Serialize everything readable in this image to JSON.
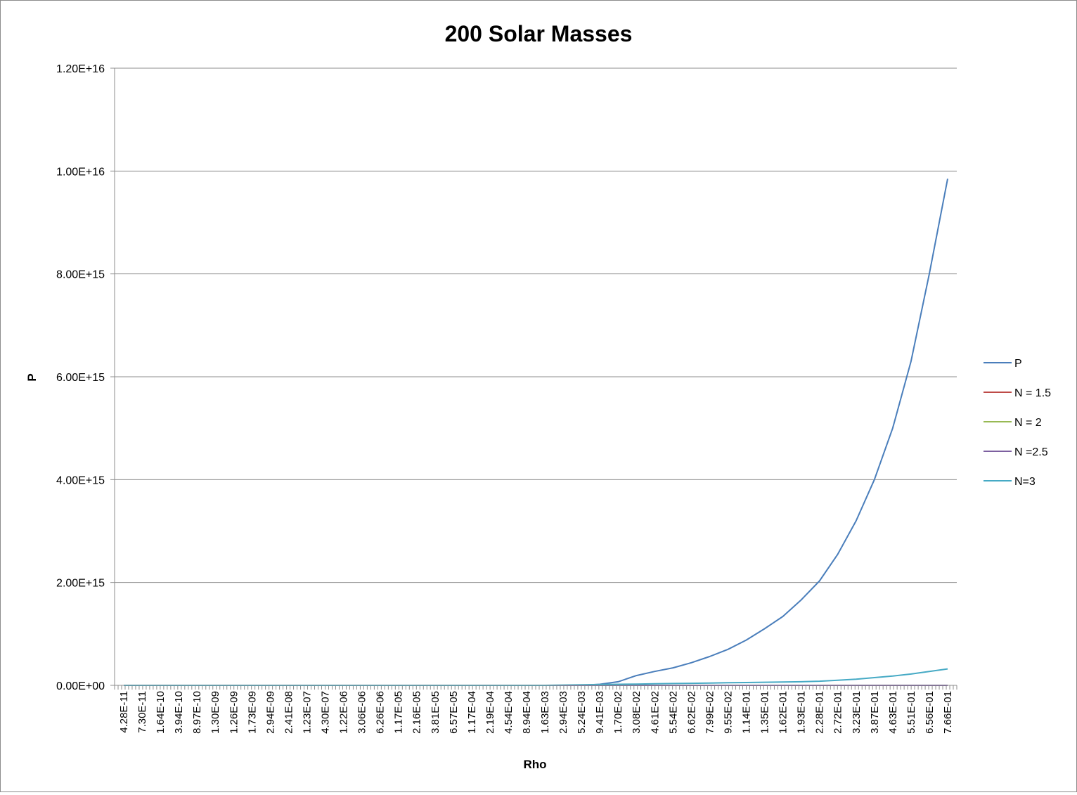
{
  "chart_data": {
    "type": "line",
    "title": "200 Solar Masses",
    "xlabel": "Rho",
    "ylabel": "P",
    "ylim": [
      0,
      1.2e+16
    ],
    "y_ticks": [
      "0.00E+00",
      "2.00E+15",
      "4.00E+15",
      "6.00E+15",
      "8.00E+15",
      "1.00E+16",
      "1.20E+16"
    ],
    "y_tick_values": [
      0,
      2000000000000000.0,
      4000000000000000.0,
      6000000000000000.0,
      8000000000000000.0,
      1e+16,
      1.2e+16
    ],
    "grid": true,
    "legend_position": "right",
    "categories": [
      "4.28E-11",
      "7.30E-11",
      "1.64E-10",
      "3.94E-10",
      "8.97E-10",
      "1.30E-09",
      "1.26E-09",
      "1.73E-09",
      "2.94E-09",
      "2.41E-08",
      "1.23E-07",
      "4.30E-07",
      "1.22E-06",
      "3.06E-06",
      "6.26E-06",
      "1.17E-05",
      "2.16E-05",
      "3.81E-05",
      "6.57E-05",
      "1.17E-04",
      "2.19E-04",
      "4.54E-04",
      "8.94E-04",
      "1.63E-03",
      "2.94E-03",
      "5.24E-03",
      "9.41E-03",
      "1.70E-02",
      "3.08E-02",
      "4.61E-02",
      "5.54E-02",
      "6.62E-02",
      "7.99E-02",
      "9.55E-02",
      "1.14E-01",
      "1.35E-01",
      "1.62E-01",
      "1.93E-01",
      "2.28E-01",
      "2.72E-01",
      "3.23E-01",
      "3.87E-01",
      "4.63E-01",
      "5.51E-01",
      "6.56E-01",
      "7.66E-01"
    ],
    "series": [
      {
        "name": "P",
        "color": "#4a7ebb",
        "values": [
          0,
          0,
          0,
          0,
          0,
          0,
          0,
          0,
          0,
          0,
          0,
          0,
          0,
          0,
          0,
          0,
          0,
          0,
          0,
          0,
          0,
          0,
          0,
          0,
          0,
          0,
          20000000000000.0,
          70000000000000.0,
          190000000000000.0,
          270000000000000.0,
          340000000000000.0,
          440000000000000.0,
          560000000000000.0,
          700000000000000.0,
          880000000000000.0,
          1100000000000000.0,
          1340000000000000.0,
          1660000000000000.0,
          2030000000000000.0,
          2550000000000000.0,
          3200000000000000.0,
          4000000000000000.0,
          5000000000000000.0,
          6300000000000000.0,
          8000000000000000.0,
          9850000000000000.0
        ]
      },
      {
        "name": "N = 1.5",
        "color": "#be4b48",
        "values": [
          0,
          0,
          0,
          0,
          0,
          0,
          0,
          0,
          0,
          0,
          0,
          0,
          0,
          0,
          0,
          0,
          0,
          0,
          0,
          0,
          0,
          0,
          0,
          0,
          0,
          0,
          0,
          0,
          0,
          0,
          0,
          0,
          0,
          0,
          0,
          0,
          0,
          0,
          0,
          0,
          0,
          0,
          0,
          0,
          0,
          0
        ]
      },
      {
        "name": "N = 2",
        "color": "#98b954",
        "values": [
          0,
          0,
          0,
          0,
          0,
          0,
          0,
          0,
          0,
          0,
          0,
          0,
          0,
          0,
          0,
          0,
          0,
          0,
          0,
          0,
          0,
          0,
          0,
          0,
          0,
          0,
          0,
          0,
          0,
          0,
          0,
          0,
          0,
          0,
          0,
          0,
          0,
          0,
          0,
          0,
          0,
          0,
          0,
          0,
          0,
          0
        ]
      },
      {
        "name": "N =2.5",
        "color": "#7d60a0",
        "values": [
          0,
          0,
          0,
          0,
          0,
          0,
          0,
          0,
          0,
          0,
          0,
          0,
          0,
          0,
          0,
          0,
          0,
          0,
          0,
          0,
          0,
          0,
          0,
          0,
          0,
          0,
          0,
          0,
          0,
          0,
          0,
          0,
          0,
          0,
          0,
          0,
          0,
          0,
          0,
          0,
          0,
          0,
          0,
          0,
          0,
          0
        ]
      },
      {
        "name": "N=3",
        "color": "#46aac5",
        "values": [
          0,
          0,
          0,
          0,
          0,
          0,
          0,
          0,
          0,
          0,
          0,
          0,
          0,
          0,
          0,
          0,
          0,
          0,
          0,
          0,
          0,
          0,
          0,
          0,
          5000000000000.0,
          10000000000000.0,
          15000000000000.0,
          20000000000000.0,
          25000000000000.0,
          30000000000000.0,
          35000000000000.0,
          40000000000000.0,
          45000000000000.0,
          50000000000000.0,
          55000000000000.0,
          60000000000000.0,
          65000000000000.0,
          70000000000000.0,
          80000000000000.0,
          100000000000000.0,
          120000000000000.0,
          150000000000000.0,
          180000000000000.0,
          220000000000000.0,
          270000000000000.0,
          320000000000000.0
        ]
      }
    ]
  }
}
